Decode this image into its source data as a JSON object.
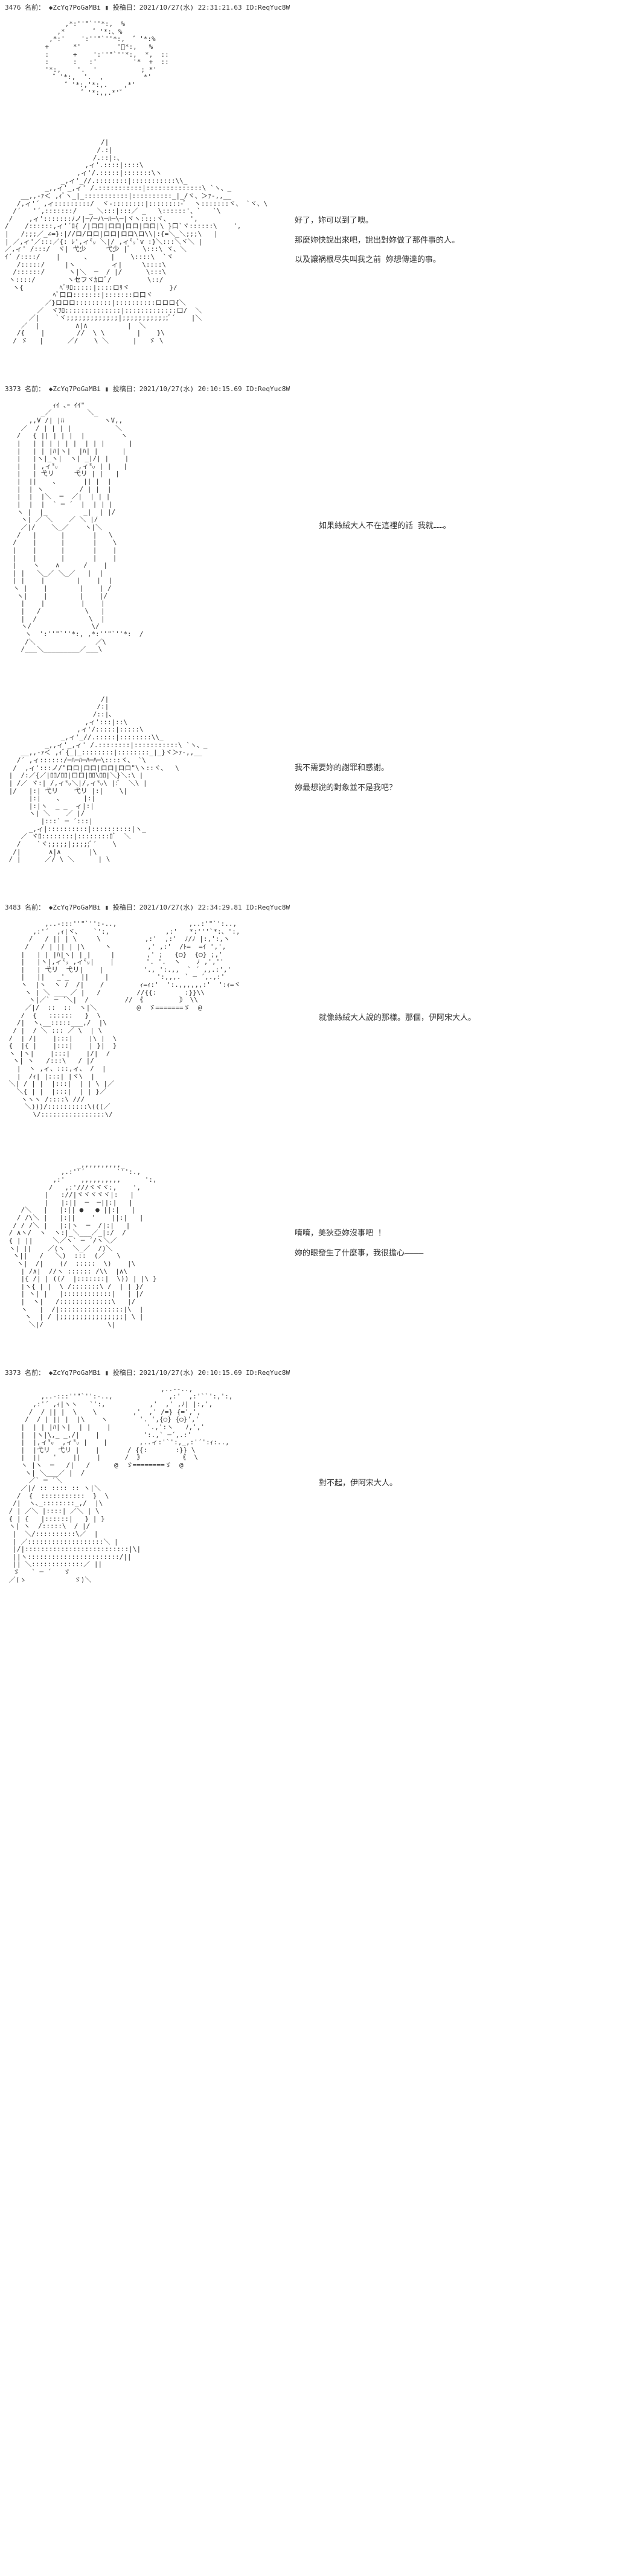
{
  "posts": [
    {
      "number": "3476",
      "name_label": "名前：",
      "trip": "◆ZcYq7PoGaMBi",
      "date_label": "投稿日：",
      "date": "2021/10/27(水) 22:31:21.63",
      "id_label": "ID:",
      "id": "ReqYuc8W",
      "ascii_class": "ascii-small",
      "ascii": "         ,*:''\"`''*:,  %\n       ,*       ゛'*:、%\n     ,*:'    ':''\"`''*:,  ゛'*:%\n    +      *'         'ﾟ*:,   %\n    :      +    ':''\"`''*:,  *,  ::\n    :      :   :'         '*  +  ::\n    '*:,    '.  '           ; *'\n      ゛'*:,  '.  ,          *'\n         ゛'*:,'*:,.    ,*'\n             ゛'*:,,.*'゛",
      "dialogue": []
    },
    {
      "number": "",
      "ascii_class": "ascii-medium",
      "ascii": "                        /|\n                       /.:|\n                      /.::|:、\n                    ,ィ'.::::|::::\\\n                  ,ィ'/.:::::|:::::::\\ヽ\n              _,ィ'_//.::::::::|:::::::::::\\\\_\n          _,,ィ'_,ィ' /.:::::::::::|::::::::::::::\\ `ヽ、_\n    __,,-ｧ＜ ,ｨﾞヽ_|_:::::::::::|::::::::::_|_/ヾ、＞ｧ-,,__\n   /,ィ'´ ,ィ:::::::::/  ヾ-::::::::|::::::::-ﾞ  ヽ:::::::ヾ、 `ヾ、\\\n  /´   '´,:::::::/   _ ＼:::|:::／ _   \\::::::'、`   `\\\n /    ,ィ':::::::ﾉノ|─/─ハ─ﾊ─\\─|ヾヽ::::ヾ、     ',\n/    /::::::,ィ'´ﾛ{ /|ロロ|ロロ|ロロ|ロロ|\\ }口`ヾ::::::\\    ',\n|   /;;;／_∠=}:|//ロ/ロロ|ロロ|ロロ\\ロ\\\\|:{=＼_＼;;;\\   |\n| ／,ィ'／:::／{: ﾚ',ィ㍉ ＼|/ ,ィ㍉`v :}＼:::＼ヾ＼ |\n／,ィ' /:::/  ヾ| 弋少     弋少 |ﾞ   \\:::\\ ヾ、＼\nｲ´ /::::/    |      、     |    \\::::\\  `ヾ\n   /:::::/     |ヽ         ィ|     \\::::\\\n  /::::::/      ヽ|＼  ─  / |/      \\:::\\\n ヽ::::/        ヽセフヾｶロﾞ/         \\::/\n  ヽ{         ﾍﾞﾘﾛ:::::|::::ロﾘヾ          }/\n            ﾍﾞ口ロ:::::::|:::::::ロ口ヾ\n          ／}ロロロ:::::::::|::::::::::ロロロ{＼\n        ／  ヾｦﾛ::::::::::::::|:::::::::::::口/  ＼\n      ／|    `ヾ;;;;;;;;;;;;;|;;;;;;;;;;;;ﾞ´    |＼\n    ／  |         ∧|∧          |  ＼\n   /{    |        //  \\ \\        |    }\\\n  / ゞ   |      ／/    \\ ＼      |   ゞ \\",
      "dialogue": [
        "好了，妳可以到了噢。",
        "那麼妳快說出來吧，說出對妳做了那件事的人。",
        "以及讓祸根尽失叫我之前 妳想傳達的事。"
      ]
    },
    {
      "number": "3373",
      "name_label": "名前：",
      "trip": "◆ZcYq7PoGaMBi",
      "date_label": "投稿日：",
      "date": "2021/10/27(水) 20:10:15.69",
      "id_label": "ID:",
      "id": "ReqYuc8W",
      "ascii_class": "ascii-large",
      "ascii": "            ｨｲ ､ｰ ｲｲ\"\n         _／         ＼_\n      ,,V /| |ﾊ          ヽV,,\n    ／  / | | | |           ＼\n   /   { || | | |  |         ヽ\n   |   | | | | | |  | | |      |\n   |   | | |ﾊ|ヽ|  |ﾊ| |      |\n   |   |ヽ|_ヽ|  ヽ| _|/| |    |\n   |   | ,ィ㍉     ,ィ㍉ | |   |\n   |   | 弋リ     弋リ | |   |\n   |  ||    、      || |  |\n   |  | ヽ         / | |  |\n   |  |  |＼  ─  ／|  | | |\n   |  |  |  ` ─ ´  |  | | |\n   ヽ |  |_         _|  | |/\n    ヽ| ／ ＼    ／ ＼ |/\n    ／|/    ＼_／    ヽ|＼\n   /   |      |       |   \\\n  /    |      |       |    \\\n  |    |      |       |    |\n  |    |      |       |    |\n  |    ヽ    ∧      /    |\n  | |   ＼_／ ＼_／   |  |\n  | |    |        |    |  |\n  ヽ |    |        |    | /\n   ヽ|    |        |    |/\n    |    |         |    |\n    |   /           \\   |\n    |  /             \\  |\n    ヽ/               \\/\n     ヽ  ':''\"`''*:, ,*:''\"`''*:  /\n     /＼               ／\\\n    /___＼_________／___\\",
      "dialogue": [
        "如果絲絨大人不在這裡的話 我就……。"
      ]
    },
    {
      "number": "",
      "ascii_class": "ascii-medium",
      "ascii": "                        /|\n                       /:|\n                      /::|、\n                    ,ィ':::|::\\\n                  ,ィ'/:::::|:::::\\\n              _,ィ'_//.:::::|::::::::\\\\_\n          _,,ィ'_,ィ' /.::::::::|:::::::::::\\ `ヽ、_\n    __,,-ｧ＜ ,ｨﾞ{_|_::::::::|::::::::_|_}ヾ＞ｧ-,,__\n   /´ ,ィ::::::/─ﾊ─ﾊ─ﾊ─ﾊ─\\::::ヾ、 `\\\n  /  ,ィ':::ノ/\"ロロ|ロロ|ロロ|ロロ\"\\ヽ::ヾ、  \\\n |  /:／{／|ﾛﾛ/ﾛﾛ|ロロ|ﾛﾛ\\ﾛﾛ|＼}＼:\\ |\n | /／ ヾ:| /,ィ㍉＼|/,ィ㍉\\ |:ﾞ  ＼\\ |\n |/   |:| 弋リ    弋リ |:|    \\|\n      |:|    、     |:|\n      |:|ヽ  _ _  ィ|:|\n      ヽ| ＼    ／ |/\n         |:::` ─ ´:::|\n      _,ィ|::::::::::|::::::::::|ヽ_\n    ／ ヾﾛ::::::::|::::::::ﾛﾞ  ＼\n   /    `ヾ;;;;;|;;;;;ﾞ´    \\\n  /|       ∧|∧       |\\\n / |      ／/ \\ ＼      | \\",
      "dialogue": [
        "我不需要妳的謝罪和感謝。",
        "妳最想說的對象並不是我吧？"
      ]
    },
    {
      "number": "3483",
      "name_label": "名前：",
      "trip": "◆ZcYq7PoGaMBi",
      "date_label": "投稿日：",
      "date": "2021/10/27(水) 22:34:29.81",
      "id_label": "ID:",
      "id": "ReqYuc8W",
      "ascii_class": "ascii-large",
      "ascii": "          ,..-:::''\"`'':-..,                  ,..:'\"`':..,\n       ,:'´  ,ｨ|ヾ、   `':,              ,:'   *:'''`*:、':,\n      /   / || | \\     \\           ,:'  ,:'  ﾉ/ﾉ |:,':,ヽ\n     /   / | || | |\\     ヽ         ,' ,:'  /ﾄ=  =ｲ ',',\n    |   | | |ﾊ|ヽ| | |     |        ,' ;   {○}  {○} ;,'\n    |   |ヽ|,ィ㍉ ,ィ㍉|    |        '. '.  ヽ    ﾉ ,',''\n    |   | 弋リ  弋リ|    |          '., ':.,,  ` ´ ,,.:','\n    |   ||   _'_   ||    |            ':,,,. ` ─ ´,.,:'\n    ヽ  |ヽ  ヽ ﾉ  /|    /         ｨ=ｨ:'  ':.,,,,,,:'  ':ｨ=ヾ\n     ヽ | ＼ ___ ／ |   /         //{{:       :}}\\\\\n      ヽ|／` ─ ´＼|  /         // 《         》 \\\\\n     ／|/  ::  ::  ヽ|＼          @  ゞ=======ゞ  @\n    /  {   ::::::   }  \\\n   /|  ヽ､__:::::___,/  |\\\n  / |  / ＼ ::: ／ \\  | \\\n /  | /|    |:::|    |\\ |  \\\n {  |{ |    |:::|    | }|  }\n ヽ |ヽ|    |:::|    |/|  /\n  ヽ| ヽ   /:::\\   / |/\n   |  ヽ ,ィ、:::,ィ、 /  |\n   |  /ｨ| |:::| |ヾ\\  |\n ＼| / | |  |:::|  | | \\ |／\n   ＼{ | |  |:::|  | | }／\n    ヽヽヽ /::::\\ ///\n     ＼)))/::::::::::\\(((／\n       \\/::::::::::::::::\\/",
      "dialogue": [
        "就像絲絨大人說的那樣。那個，伊阿宋大人。"
      ]
    },
    {
      "number": "",
      "ascii_class": "ascii-medium",
      "ascii": "                  _,,,,,,,,,,_\n              ,.:''´        `'':.,\n            ,:'    ,,,,,,,,,,      ':,\n           /   ,:'///ヾヾヾ:,    ',\n          |   ://|ヾヾヾヾヾ|:   |\n          |   |:||  ─  ─||:|   |\n    /＼   |   |:|| ●   ● ||:|   |\n   / /\\＼ |   |:||    '    ||:|   |\n  / / /＼ |   |:|ヽ  ─  /|:|   |\n / ∧ヽ/  ヽ  ヽ:|_＼___／_|:/  /\n { | ||     ＼／ヽ` ─ ´/ヽ＼／\n ヽ| ||    ／(ヽ  ＼_／  /)＼\n  ヽ||   /   ＼)  :::  (／   \\\n   ヽ|  /|    (/  :::::  \\)    |\\\n    | /∧|  //ヽ :::::: /\\\\  |∧\\\n    |{ /| | ((/  |:::::::|  \\)) | |\\ }\n    |ヽ{ | |  \\ /:::::::\\ /  | | }/\n    | ヽ| |   |::::::::::::|   | |/\n    |  ヽ|   /:::::::::::::\\   |/\n    ヽ   |  /|::::::::::::::::|\\  |\n     ヽ  | / |;;;;;;;;;;;;;;;;| \\ |\n      ＼|/                \\|",
      "dialogue": [
        "唷唷，美狄亞妳沒事吧 ！",
        "妳的眼發生了什麼事，我很擔心――――"
      ]
    },
    {
      "number": "3373",
      "name_label": "名前：",
      "trip": "◆ZcYq7PoGaMBi",
      "date_label": "投稿日：",
      "date": "2021/10/27(水) 20:10:15.69",
      "id_label": "ID:",
      "id": "ReqYuc8W",
      "ascii_class": "ascii-large",
      "ascii": "                                       ,..--..,\n         ,..-:::''\"`'':-..,              ,:'  ,:'``':,':,\n       ,:'´ ,ｨ|ヽヽ   `':,           ,'  ,' ,ﾉ| |:,',\n      /  / || |  \\    \\         ,'  ,' /=} {=',',\n     /  / | || |  |\\    ヽ        '. ',{○} {○}','\n    |  | | |ﾊ|ヽ|  | |    |         '.,':ヽ   ﾉ,','\n    |  |ヽ|\\,_ _,/|    |           ':.,` ─´,.:'\n    |  |,ィ㍉  ,ィ㍉ |    |        ,..ィ:'`':,_,:'´':ｨ:..,\n    |  |弋リ  弋リ |    |       / {{:       :}} \\\n    |  ||   '    ||    |      /  》         《  \\\n    ヽ |ヽ  ─   /|   /      @  ゞ========ゞ  @\n     ヽ| ＼___／ |  /\n      ／` ─ ´＼\n    ／|/ :: :::: :: ヽ|＼\n   /  {  :::::::::::  }  \\\n  /|  ヽ､_::::::::_,/  |\\\n / | ／＼ |::::| ／＼ | \\\n { | {   |::::::|   } | }\n ヽ| ヽ  /:::::\\  / |/\n  |  ＼/::::::::::\\／  |\n  | ／:::::::::::::::::::＼ |\n  |/|::::::::::::::::::::::::::|\\|\n  ||ヽ:::::::::::::::::::::::/||\n  || ＼:::::::::::::／ ||\n  ゞ   ` ─ ´   ゞ\n ／(ゝ            ゞ)＼",
      "dialogue": [
        "對不起，伊阿宋大人。"
      ]
    }
  ]
}
